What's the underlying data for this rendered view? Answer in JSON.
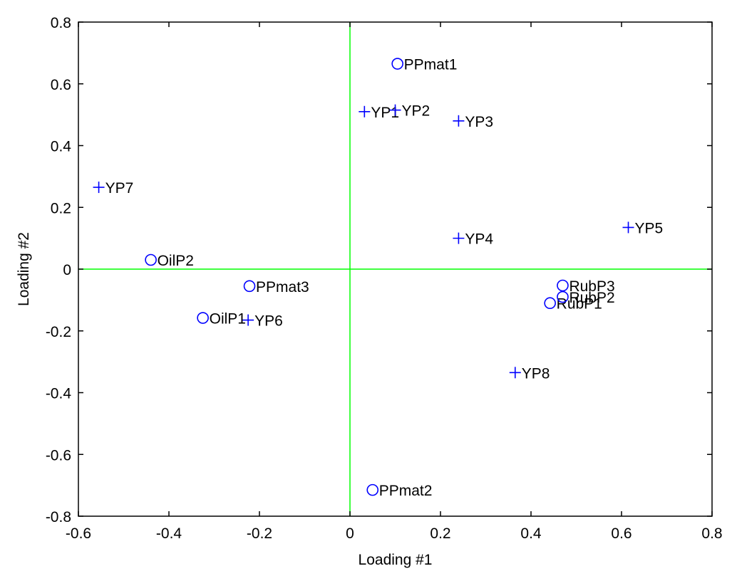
{
  "chart_data": {
    "type": "scatter",
    "xlabel": "Loading #1",
    "ylabel": "Loading #2",
    "xlim": [
      -0.6,
      0.8
    ],
    "ylim": [
      -0.8,
      0.8
    ],
    "xticks": [
      "-0.6",
      "-0.4",
      "-0.2",
      "0",
      "0.2",
      "0.4",
      "0.6",
      "0.8"
    ],
    "yticks": [
      "-0.8",
      "-0.6",
      "-0.4",
      "-0.2",
      "0",
      "0.2",
      "0.4",
      "0.6",
      "0.8"
    ],
    "grid": false,
    "zero_lines": true,
    "colors": {
      "marker": "#0000ff",
      "zero_line": "#00ff00",
      "axes": "#000000"
    },
    "series": [
      {
        "marker": "plus",
        "points": [
          {
            "label": "YP1",
            "x": 0.032,
            "y": 0.51
          },
          {
            "label": "YP2",
            "x": 0.1,
            "y": 0.515
          },
          {
            "label": "YP3",
            "x": 0.24,
            "y": 0.48
          },
          {
            "label": "YP4",
            "x": 0.24,
            "y": 0.1
          },
          {
            "label": "YP5",
            "x": 0.615,
            "y": 0.135
          },
          {
            "label": "YP6",
            "x": -0.225,
            "y": -0.165
          },
          {
            "label": "YP7",
            "x": -0.555,
            "y": 0.265
          },
          {
            "label": "YP8",
            "x": 0.365,
            "y": -0.335
          }
        ]
      },
      {
        "marker": "circle",
        "points": [
          {
            "label": "PPmat1",
            "x": 0.105,
            "y": 0.665
          },
          {
            "label": "PPmat2",
            "x": 0.05,
            "y": -0.715
          },
          {
            "label": "PPmat3",
            "x": -0.222,
            "y": -0.055
          },
          {
            "label": "OilP1",
            "x": -0.325,
            "y": -0.158
          },
          {
            "label": "OilP2",
            "x": -0.44,
            "y": 0.03
          },
          {
            "label": "RubP1",
            "x": 0.442,
            "y": -0.11
          },
          {
            "label": "RubP2",
            "x": 0.47,
            "y": -0.09
          },
          {
            "label": "RubP3",
            "x": 0.47,
            "y": -0.053
          }
        ]
      }
    ]
  }
}
